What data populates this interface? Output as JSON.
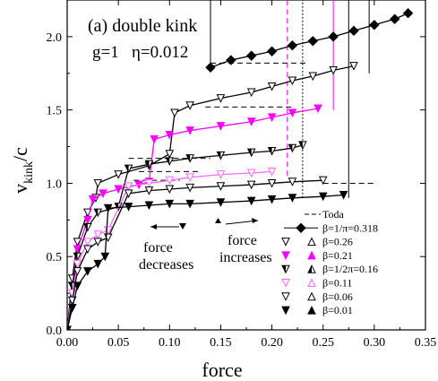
{
  "chart_data": {
    "type": "line",
    "panel_label": "(a) double kink",
    "params_label": "g=1   η=0.012",
    "xlabel": "force",
    "ylabel_main": "v",
    "ylabel_sub": "kink",
    "ylabel_tail": "/c",
    "xlim": [
      0,
      0.35
    ],
    "ylim": [
      0,
      2.25
    ],
    "xticks": [
      "0.00",
      "0.05",
      "0.10",
      "0.15",
      "0.20",
      "0.25",
      "0.30",
      "0.35"
    ],
    "yticks": [
      "0.0",
      "0.5",
      "1.0",
      "1.5",
      "2.0"
    ],
    "annotations": {
      "decrease": [
        "force",
        "decreases"
      ],
      "increase": [
        "force",
        "increases"
      ]
    },
    "legend_position": "bottom-right",
    "legend": [
      "Toda",
      "β=1/π=0.318",
      "β=0.26",
      "β=0.21",
      "β=1/2π=0.16",
      "β=0.11",
      "β=0.06",
      "β=0.01"
    ],
    "colors": {
      "black": "#000000",
      "magenta": "#ff00ff",
      "pink": "#ff66ff",
      "orange": "#ff8c00",
      "gray": "#888888"
    },
    "series": [
      {
        "name": "Toda",
        "style": "dash",
        "color": "#000000",
        "segments": [
          [
            [
              0.14,
              1.82
            ],
            [
              0.235,
              1.82
            ]
          ],
          [
            [
              0.135,
              1.52
            ],
            [
              0.22,
              1.52
            ]
          ],
          [
            [
              0.06,
              1.17
            ],
            [
              0.14,
              1.17
            ]
          ],
          [
            [
              0.07,
              1.08
            ],
            [
              0.13,
              1.08
            ]
          ],
          [
            [
              0.065,
              1.02
            ],
            [
              0.11,
              1.02
            ]
          ],
          [
            [
              0.25,
              1.0
            ],
            [
              0.3,
              1.0
            ]
          ],
          [
            [
              0.0,
              0.0
            ],
            [
              0.01,
              0.5
            ]
          ]
        ]
      },
      {
        "name": "β=1/π=0.318",
        "style": "solid",
        "marker": "diamond-filled",
        "color": "#000000",
        "x": [
          0.14,
          0.16,
          0.18,
          0.2,
          0.22,
          0.24,
          0.26,
          0.28,
          0.3,
          0.32,
          0.333
        ],
        "y": [
          1.79,
          1.84,
          1.87,
          1.9,
          1.94,
          1.97,
          2.0,
          2.04,
          2.08,
          2.12,
          2.16
        ]
      },
      {
        "name": "β=0.26",
        "style": "solid",
        "marker": "triangle-open",
        "color": "#000000",
        "x": [
          0.0,
          0.005,
          0.01,
          0.02,
          0.028,
          0.03,
          0.05,
          0.08,
          0.1,
          0.105,
          0.12,
          0.15,
          0.18,
          0.2,
          0.22,
          0.24,
          0.26,
          0.28
        ],
        "y": [
          0.0,
          0.35,
          0.6,
          0.8,
          0.9,
          1.0,
          1.06,
          1.12,
          1.2,
          1.48,
          1.53,
          1.58,
          1.62,
          1.66,
          1.7,
          1.73,
          1.77,
          1.8
        ]
      },
      {
        "name": "β=0.21",
        "style": "solid",
        "marker": "triangle-filled",
        "color": "#ff00ff",
        "x": [
          0.0,
          0.005,
          0.01,
          0.02,
          0.025,
          0.035,
          0.05,
          0.07,
          0.08,
          0.085,
          0.1,
          0.12,
          0.15,
          0.18,
          0.2,
          0.22,
          0.245
        ],
        "y": [
          0.0,
          0.3,
          0.55,
          0.75,
          0.89,
          0.93,
          0.96,
          0.99,
          1.01,
          1.3,
          1.33,
          1.36,
          1.39,
          1.42,
          1.45,
          1.48,
          1.51
        ]
      },
      {
        "name": "β=1/2π=0.16",
        "style": "solid",
        "marker": "triangle-half",
        "color": "#000000",
        "x": [
          0.0,
          0.005,
          0.01,
          0.02,
          0.03,
          0.05,
          0.06,
          0.08,
          0.1,
          0.12,
          0.15,
          0.18,
          0.2,
          0.22,
          0.23
        ],
        "y": [
          0.0,
          0.3,
          0.5,
          0.7,
          0.8,
          0.84,
          1.1,
          1.13,
          1.15,
          1.17,
          1.19,
          1.21,
          1.22,
          1.24,
          1.26
        ]
      },
      {
        "name": "β=0.11",
        "style": "solid",
        "marker": "triangle-open",
        "color": "#ff66ff",
        "x": [
          0.0,
          0.005,
          0.01,
          0.02,
          0.03,
          0.04,
          0.06,
          0.08,
          0.1,
          0.12,
          0.15,
          0.18,
          0.2
        ],
        "y": [
          0.0,
          0.25,
          0.45,
          0.6,
          0.65,
          0.68,
          0.98,
          1.0,
          1.02,
          1.04,
          1.06,
          1.07,
          1.08
        ]
      },
      {
        "name": "β=0.06",
        "style": "solid",
        "marker": "triangle-open",
        "color": "#000000",
        "x": [
          0.0,
          0.005,
          0.01,
          0.02,
          0.03,
          0.04,
          0.06,
          0.08,
          0.1,
          0.12,
          0.15,
          0.18,
          0.2,
          0.22,
          0.25
        ],
        "y": [
          0.0,
          0.2,
          0.4,
          0.55,
          0.6,
          0.63,
          0.93,
          0.95,
          0.96,
          0.97,
          0.98,
          0.99,
          1.0,
          1.01,
          1.02
        ]
      },
      {
        "name": "β=0.01",
        "style": "solid",
        "marker": "triangle-filled",
        "color": "#000000",
        "x": [
          0.0,
          0.005,
          0.01,
          0.02,
          0.03,
          0.037,
          0.04,
          0.06,
          0.08,
          0.1,
          0.12,
          0.15,
          0.18,
          0.2,
          0.22,
          0.25,
          0.27
        ],
        "y": [
          0.0,
          0.15,
          0.3,
          0.4,
          0.45,
          0.5,
          0.83,
          0.84,
          0.85,
          0.86,
          0.86,
          0.87,
          0.88,
          0.89,
          0.9,
          0.91,
          0.92
        ]
      }
    ],
    "verticals": [
      {
        "x": 0.14,
        "y": [
          1.8,
          2.25
        ],
        "color": "#000000",
        "style": "solid"
      },
      {
        "x": 0.23,
        "y": [
          0.9,
          2.25
        ],
        "color": "#000000",
        "style": "dotted"
      },
      {
        "x": 0.215,
        "y": [
          1.05,
          2.25
        ],
        "color": "#ff00ff",
        "style": "dash"
      },
      {
        "x": 0.26,
        "y": [
          1.5,
          2.25
        ],
        "color": "#ff00ff",
        "style": "solid"
      },
      {
        "x": 0.275,
        "y": [
          0.9,
          2.25
        ],
        "color": "#000000",
        "style": "solid"
      },
      {
        "x": 0.295,
        "y": [
          1.75,
          2.25
        ],
        "color": "#000000",
        "style": "solid"
      }
    ]
  }
}
